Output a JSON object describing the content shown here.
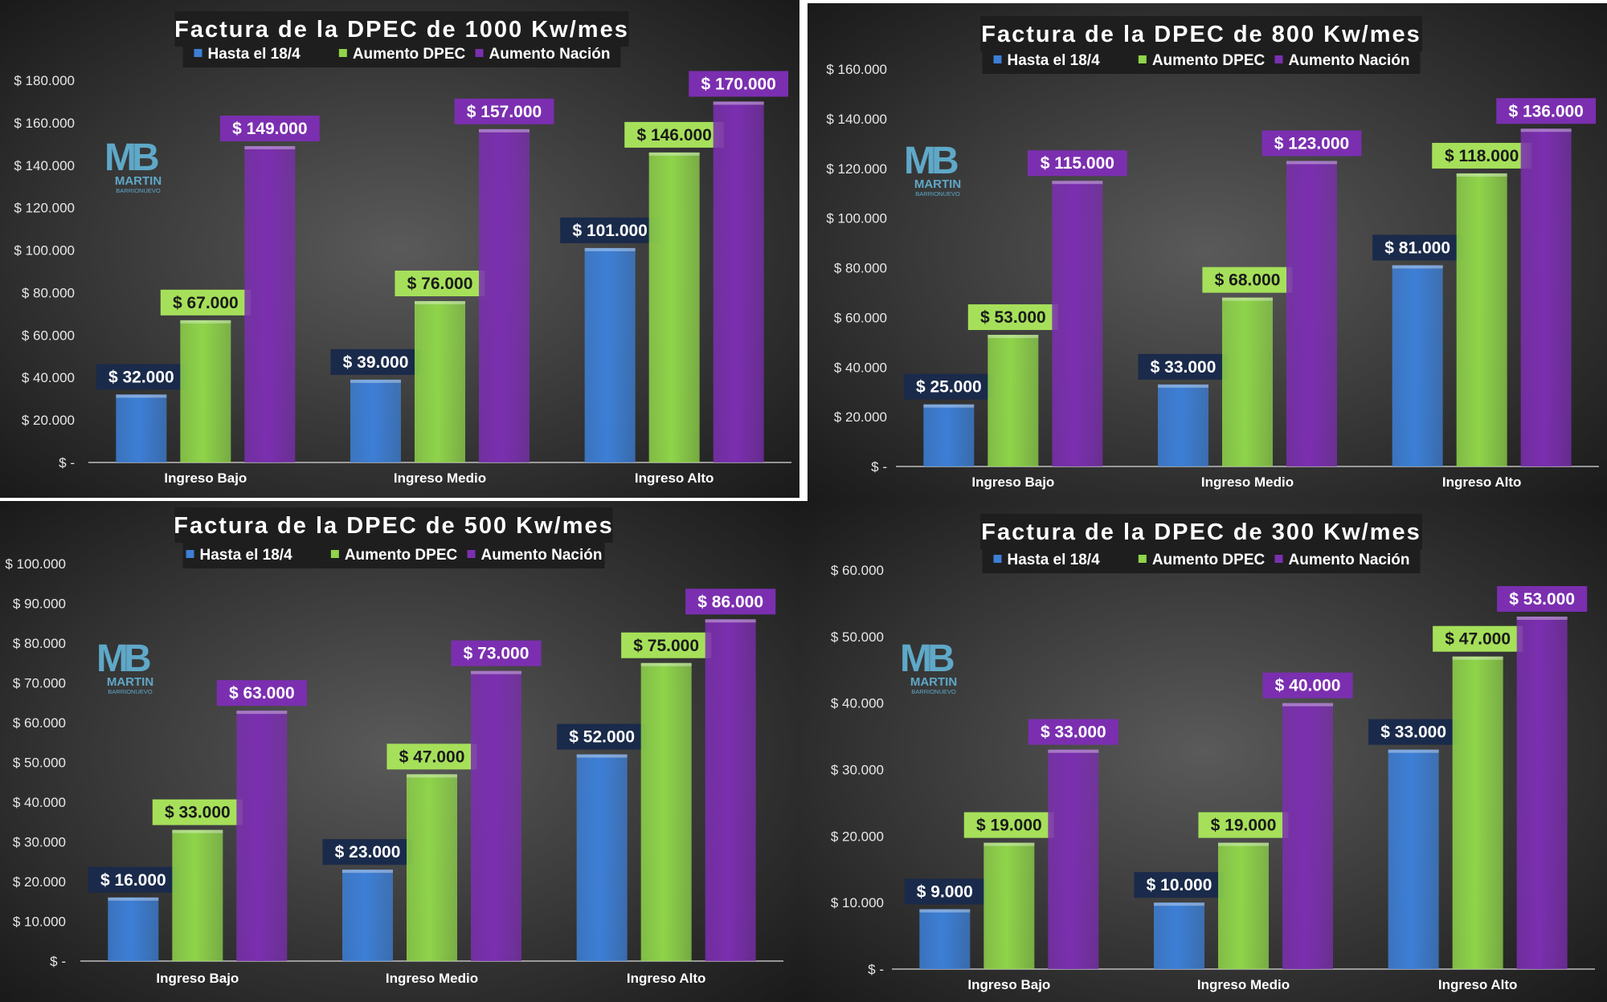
{
  "colors": {
    "background_center": "#5a5a5a",
    "background_edge": "#1a1a1a",
    "title_box": "#1e1e1e",
    "series": [
      "#3d7fd6",
      "#8fd44a",
      "#7b2fb0"
    ],
    "label_boxes": [
      "#1a2a4a",
      "#a6e05a",
      "#7b2fb0"
    ],
    "label_text": [
      "#ffffff",
      "#1a1a1a",
      "#ffffff"
    ]
  },
  "logo": {
    "mark": "MB",
    "line1": "MARTIN",
    "line2": "BARRIONUEVO"
  },
  "chart_data": [
    {
      "type": "bar",
      "title": "Factura de la DPEC de 1000 Kw/mes",
      "categories": [
        "Ingreso Bajo",
        "Ingreso Medio",
        "Ingreso Alto"
      ],
      "series": [
        {
          "name": "Hasta el 18/4",
          "values": [
            32000,
            39000,
            101000
          ],
          "labels": [
            "$ 32.000",
            "$ 39.000",
            "$ 101.000"
          ]
        },
        {
          "name": "Aumento DPEC",
          "values": [
            67000,
            76000,
            146000
          ],
          "labels": [
            "$ 67.000",
            "$ 76.000",
            "$ 146.000"
          ]
        },
        {
          "name": "Aumento Nación",
          "values": [
            149000,
            157000,
            170000
          ],
          "labels": [
            "$ 149.000",
            "$ 157.000",
            "$ 170.000"
          ]
        }
      ],
      "ylim": [
        0,
        180000
      ],
      "yticks": [
        "$ -",
        "$ 20.000",
        "$ 40.000",
        "$ 60.000",
        "$ 80.000",
        "$ 100.000",
        "$ 120.000",
        "$ 140.000",
        "$ 160.000",
        "$ 180.000"
      ],
      "grid": false,
      "legend": "top-center"
    },
    {
      "type": "bar",
      "title": "Factura de la DPEC de 800 Kw/mes",
      "categories": [
        "Ingreso Bajo",
        "Ingreso Medio",
        "Ingreso Alto"
      ],
      "series": [
        {
          "name": "Hasta el 18/4",
          "values": [
            25000,
            33000,
            81000
          ],
          "labels": [
            "$ 25.000",
            "$ 33.000",
            "$ 81.000"
          ]
        },
        {
          "name": "Aumento DPEC",
          "values": [
            53000,
            68000,
            118000
          ],
          "labels": [
            "$ 53.000",
            "$ 68.000",
            "$ 118.000"
          ]
        },
        {
          "name": "Aumento Nación",
          "values": [
            115000,
            123000,
            136000
          ],
          "labels": [
            "$ 115.000",
            "$ 123.000",
            "$ 136.000"
          ]
        }
      ],
      "ylim": [
        0,
        160000
      ],
      "yticks": [
        "$ -",
        "$ 20.000",
        "$ 40.000",
        "$ 60.000",
        "$ 80.000",
        "$ 100.000",
        "$ 120.000",
        "$ 140.000",
        "$ 160.000"
      ],
      "grid": false,
      "legend": "top-center"
    },
    {
      "type": "bar",
      "title": "Factura de la DPEC de 500 Kw/mes",
      "categories": [
        "Ingreso Bajo",
        "Ingreso Medio",
        "Ingreso Alto"
      ],
      "series": [
        {
          "name": "Hasta el 18/4",
          "values": [
            16000,
            23000,
            52000
          ],
          "labels": [
            "$ 16.000",
            "$ 23.000",
            "$ 52.000"
          ]
        },
        {
          "name": "Aumento DPEC",
          "values": [
            33000,
            47000,
            75000
          ],
          "labels": [
            "$ 33.000",
            "$ 47.000",
            "$ 75.000"
          ]
        },
        {
          "name": "Aumento Nación",
          "values": [
            63000,
            73000,
            86000
          ],
          "labels": [
            "$ 63.000",
            "$ 73.000",
            "$ 86.000"
          ]
        }
      ],
      "ylim": [
        0,
        100000
      ],
      "yticks": [
        "$ -",
        "$ 10.000",
        "$ 20.000",
        "$ 30.000",
        "$ 40.000",
        "$ 50.000",
        "$ 60.000",
        "$ 70.000",
        "$ 80.000",
        "$ 90.000",
        "$ 100.000"
      ],
      "grid": false,
      "legend": "top-center"
    },
    {
      "type": "bar",
      "title": "Factura de la DPEC de 300 Kw/mes",
      "categories": [
        "Ingreso Bajo",
        "Ingreso Medio",
        "Ingreso Alto"
      ],
      "series": [
        {
          "name": "Hasta el 18/4",
          "values": [
            9000,
            10000,
            33000
          ],
          "labels": [
            "$ 9.000",
            "$ 10.000",
            "$ 33.000"
          ]
        },
        {
          "name": "Aumento DPEC",
          "values": [
            19000,
            19000,
            47000
          ],
          "labels": [
            "$ 19.000",
            "$ 19.000",
            "$ 47.000"
          ]
        },
        {
          "name": "Aumento Nación",
          "values": [
            33000,
            40000,
            53000
          ],
          "labels": [
            "$ 33.000",
            "$ 40.000",
            "$ 53.000"
          ]
        }
      ],
      "ylim": [
        0,
        60000
      ],
      "yticks": [
        "$ -",
        "$ 10.000",
        "$ 20.000",
        "$ 30.000",
        "$ 40.000",
        "$ 50.000",
        "$ 60.000"
      ],
      "grid": false,
      "legend": "top-center"
    }
  ]
}
